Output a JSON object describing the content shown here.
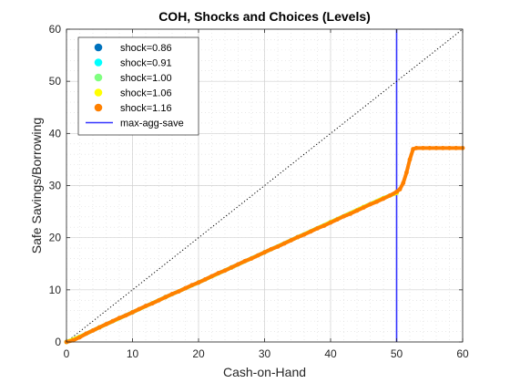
{
  "chart_data": {
    "type": "scatter",
    "title": "COH, Shocks and Choices (Levels)",
    "xlabel": "Cash-on-Hand",
    "ylabel": "Safe Savings/Borrowing",
    "xlim": [
      0,
      60
    ],
    "ylim": [
      0,
      60
    ],
    "xticks": [
      "0",
      "10",
      "20",
      "30",
      "40",
      "50",
      "60"
    ],
    "yticks": [
      "0",
      "10",
      "20",
      "30",
      "40",
      "50",
      "60"
    ],
    "grid": true,
    "minor_grid": true,
    "legend_position": "top-left",
    "series": [
      {
        "name": "shock=0.86",
        "color": "#0072bd",
        "marker": "o",
        "x": [
          0,
          2,
          5,
          10,
          15,
          20,
          25,
          30,
          35,
          40,
          45,
          48,
          50
        ],
        "y": [
          0,
          1.0,
          2.8,
          5.7,
          8.6,
          11.4,
          14.3,
          17.2,
          20.1,
          23.0,
          25.9,
          27.6,
          28.6
        ]
      },
      {
        "name": "shock=0.91",
        "color": "#00ffff",
        "marker": "o",
        "x": [
          0,
          2,
          5,
          10,
          15,
          20,
          25,
          30,
          35,
          40,
          45,
          48,
          50
        ],
        "y": [
          0,
          1.0,
          2.8,
          5.7,
          8.6,
          11.4,
          14.3,
          17.2,
          20.1,
          23.0,
          25.9,
          27.6,
          28.6
        ]
      },
      {
        "name": "shock=1.00",
        "color": "#80ff80",
        "marker": "o",
        "x": [
          0,
          2,
          5,
          10,
          15,
          20,
          25,
          30,
          35,
          40,
          45,
          48,
          50
        ],
        "y": [
          0,
          1.0,
          2.8,
          5.7,
          8.6,
          11.4,
          14.3,
          17.2,
          20.1,
          23.0,
          25.9,
          27.6,
          28.6
        ]
      },
      {
        "name": "shock=1.06",
        "color": "#ffff00",
        "marker": "o",
        "x": [
          0,
          2,
          5,
          10,
          15,
          20,
          25,
          30,
          35,
          40,
          45,
          48,
          50
        ],
        "y": [
          0,
          1.0,
          2.8,
          5.7,
          8.6,
          11.4,
          14.3,
          17.2,
          20.1,
          23.0,
          25.9,
          27.6,
          28.6
        ]
      },
      {
        "name": "shock=1.16",
        "color": "#ff8000",
        "marker": "o",
        "x": [
          0,
          1,
          2,
          3,
          4,
          5,
          6,
          7,
          8,
          9,
          10,
          11,
          12,
          13,
          14,
          15,
          16,
          17,
          18,
          19,
          20,
          21,
          22,
          23,
          24,
          25,
          26,
          27,
          28,
          29,
          30,
          31,
          32,
          33,
          34,
          35,
          36,
          37,
          38,
          39,
          40,
          41,
          42,
          43,
          44,
          45,
          46,
          47,
          48,
          49,
          50,
          50.5,
          51,
          51.5,
          52,
          52.5,
          53,
          54,
          55,
          56,
          57,
          58,
          59,
          60
        ],
        "y": [
          0,
          0.3,
          0.9,
          1.6,
          2.2,
          2.8,
          3.4,
          4.0,
          4.6,
          5.1,
          5.7,
          6.3,
          6.9,
          7.4,
          8.0,
          8.6,
          9.2,
          9.7,
          10.3,
          10.9,
          11.4,
          12.0,
          12.6,
          13.2,
          13.7,
          14.3,
          14.9,
          15.5,
          16.0,
          16.6,
          17.2,
          17.8,
          18.3,
          18.9,
          19.5,
          20.1,
          20.6,
          21.2,
          21.8,
          22.3,
          22.9,
          23.5,
          24.1,
          24.6,
          25.2,
          25.8,
          26.4,
          26.9,
          27.5,
          28.1,
          28.8,
          29.3,
          30.5,
          32.5,
          35.0,
          37.0,
          37.2,
          37.2,
          37.2,
          37.2,
          37.2,
          37.2,
          37.2,
          37.2
        ]
      }
    ],
    "reference_lines": [
      {
        "name": "max-agg-save",
        "type": "vertical",
        "x": 50,
        "color": "#3333ff",
        "in_legend": true
      },
      {
        "name": "",
        "type": "diagonal",
        "from": [
          0,
          0
        ],
        "to": [
          60,
          60
        ],
        "color": "#000000",
        "style": "dotted",
        "in_legend": false
      }
    ]
  }
}
